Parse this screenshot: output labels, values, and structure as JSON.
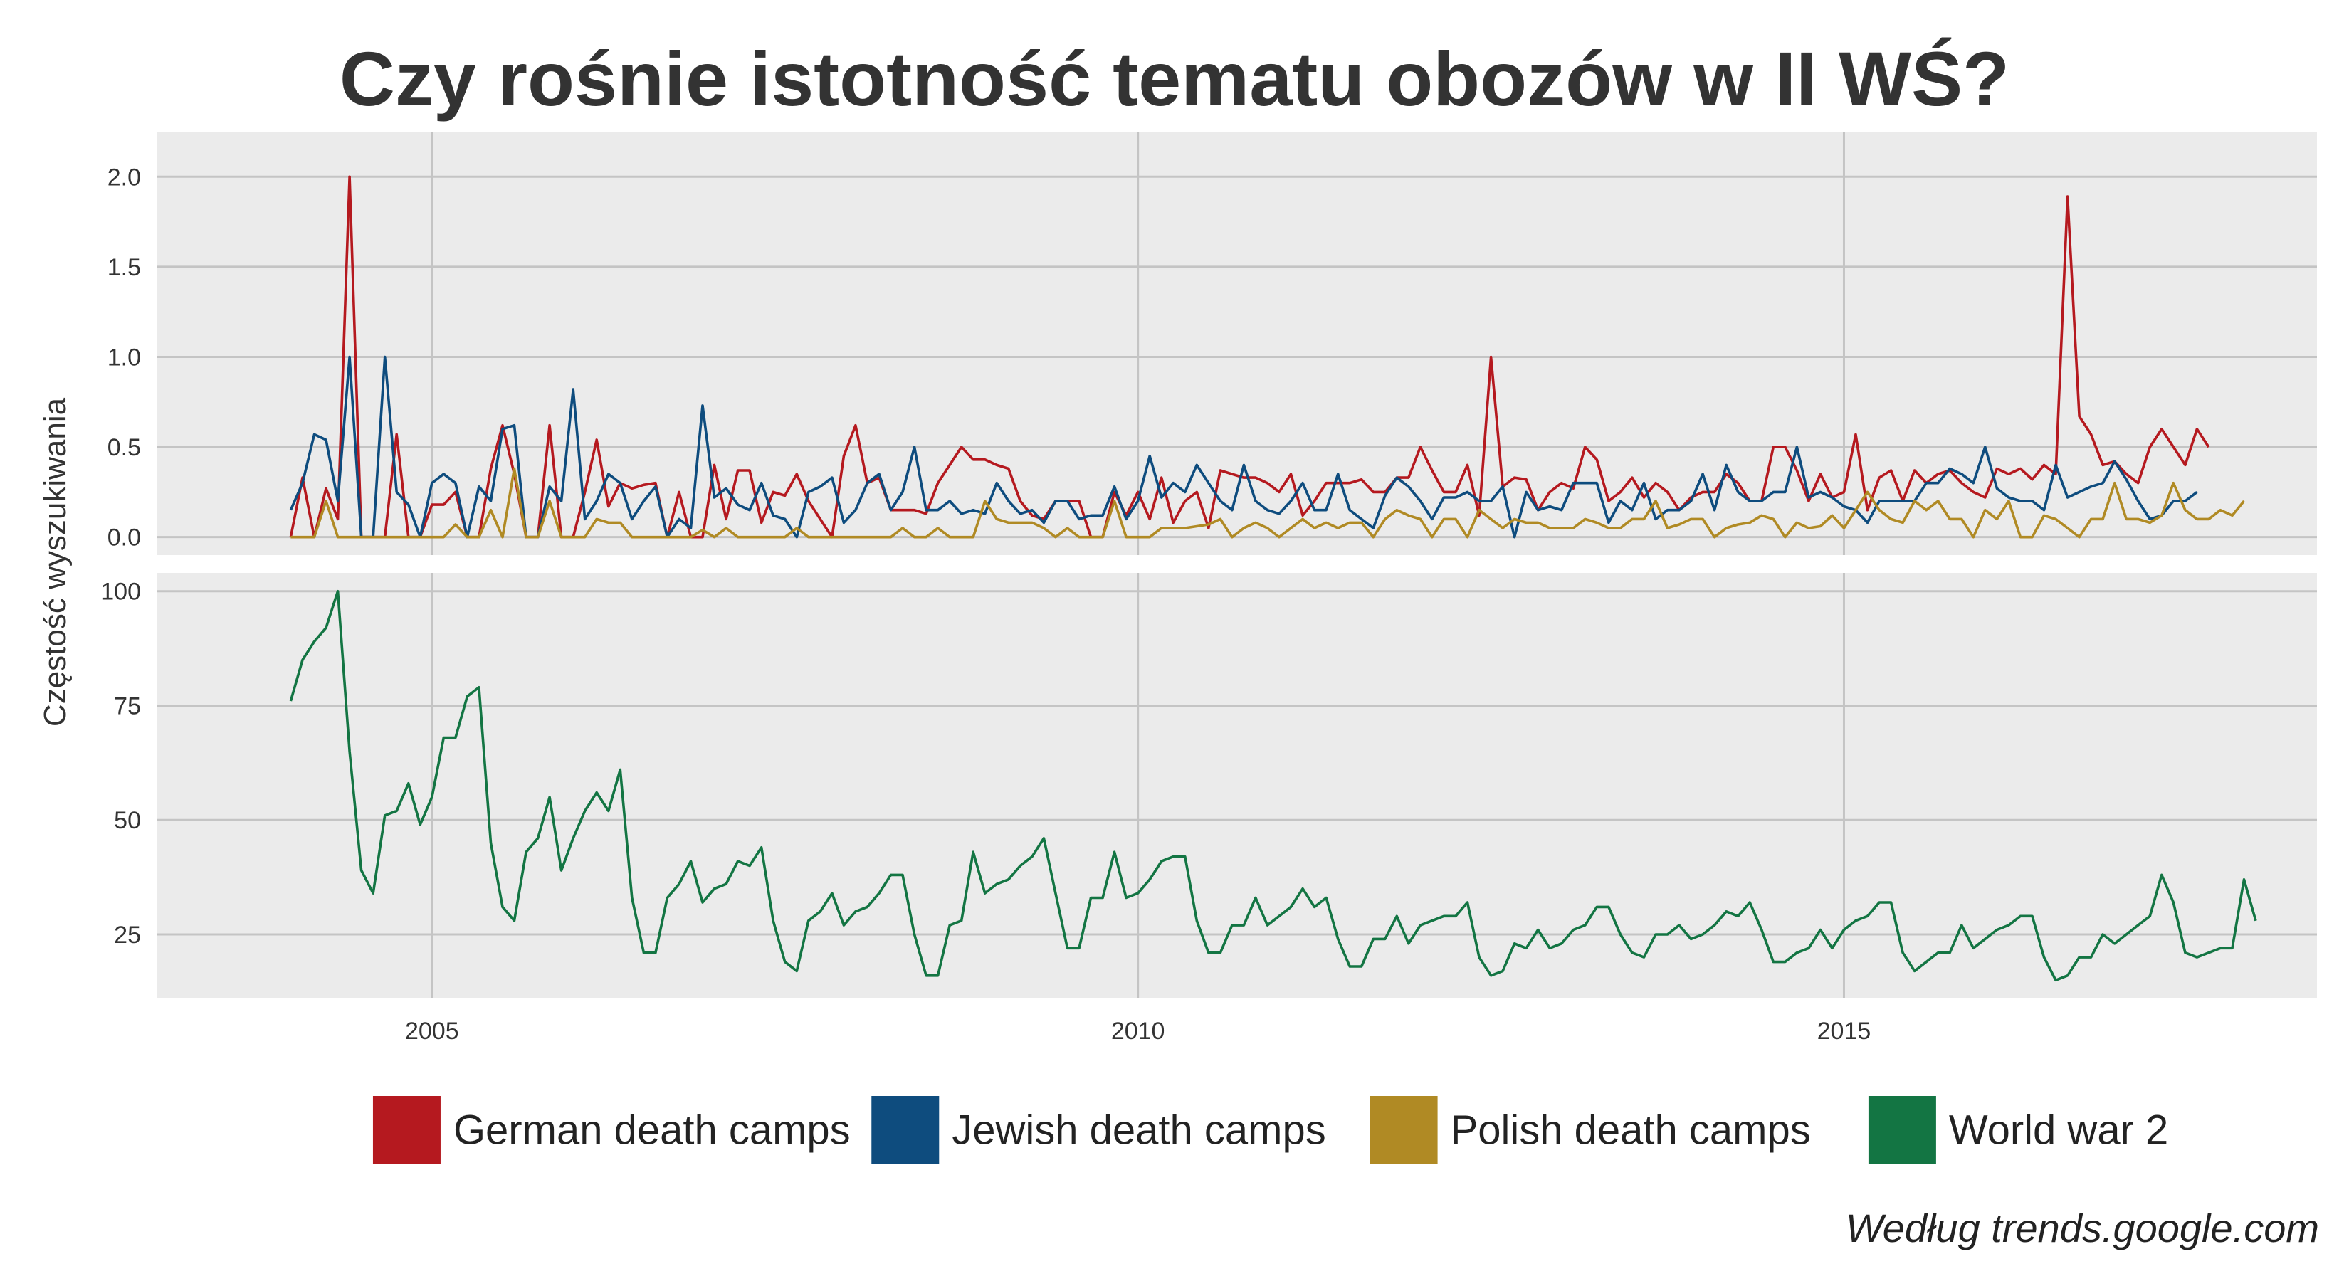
{
  "title": "Czy rośnie istotność tematu obozów w II WŚ?",
  "caption": "Według trends.google.com",
  "colors": {
    "background": "#ffffff",
    "panel": "#ebebeb",
    "grid": "#c4c4c4",
    "text": "#333333"
  },
  "chart_data": [
    {
      "type": "line",
      "panel": "top",
      "ylabel": "Częstość wyszukiwania",
      "ylim": [
        -0.1,
        2.25
      ],
      "yticks": [
        0.0,
        0.5,
        1.0,
        1.5,
        2.0
      ],
      "ytick_labels": [
        "0.0",
        "0.5",
        "1.0",
        "1.5",
        "2.0"
      ],
      "xlim": [
        2003.05,
        2018.35
      ],
      "xticks": [
        2005,
        2010,
        2015
      ],
      "xtick_labels": [
        "2005",
        "2010",
        "2015"
      ],
      "x_start": 2004.0,
      "x_step": 0.0833333,
      "grid": true,
      "series": [
        {
          "name": "German death camps",
          "color": "#b5191f",
          "values": [
            0.0,
            0.33,
            0.0,
            0.27,
            0.1,
            2.0,
            0.0,
            0.0,
            0.0,
            0.57,
            0.0,
            0.0,
            0.18,
            0.18,
            0.25,
            0.0,
            0.0,
            0.38,
            0.62,
            0.35,
            0.0,
            0.0,
            0.62,
            0.0,
            0.0,
            0.25,
            0.54,
            0.17,
            0.3,
            0.27,
            0.29,
            0.3,
            0.0,
            0.25,
            0.0,
            0.0,
            0.4,
            0.1,
            0.37,
            0.37,
            0.08,
            0.25,
            0.23,
            0.35,
            0.2,
            0.1,
            0.0,
            0.45,
            0.62,
            0.3,
            0.33,
            0.15,
            0.15,
            0.15,
            0.13,
            0.3,
            0.4,
            0.5,
            0.43,
            0.43,
            0.4,
            0.38,
            0.2,
            0.12,
            0.1,
            0.2,
            0.2,
            0.2,
            0.0,
            0.0,
            0.25,
            0.12,
            0.25,
            0.1,
            0.33,
            0.08,
            0.2,
            0.25,
            0.05,
            0.37,
            0.35,
            0.33,
            0.33,
            0.3,
            0.25,
            0.35,
            0.12,
            0.2,
            0.3,
            0.3,
            0.3,
            0.32,
            0.25,
            0.25,
            0.33,
            0.33,
            0.5,
            0.37,
            0.25,
            0.25,
            0.4,
            0.12,
            1.0,
            0.28,
            0.33,
            0.32,
            0.15,
            0.25,
            0.3,
            0.27,
            0.5,
            0.43,
            0.2,
            0.25,
            0.33,
            0.22,
            0.3,
            0.25,
            0.15,
            0.22,
            0.25,
            0.25,
            0.35,
            0.3,
            0.2,
            0.2,
            0.5,
            0.5,
            0.37,
            0.2,
            0.35,
            0.22,
            0.25,
            0.57,
            0.15,
            0.33,
            0.37,
            0.2,
            0.37,
            0.3,
            0.35,
            0.37,
            0.3,
            0.25,
            0.22,
            0.38,
            0.35,
            0.38,
            0.32,
            0.4,
            0.35,
            1.89,
            0.67,
            0.57,
            0.4,
            0.42,
            0.35,
            0.3,
            0.5,
            0.6,
            0.5,
            0.4,
            0.6,
            0.5
          ]
        },
        {
          "name": "Jewish death camps",
          "color": "#0e4c7e",
          "values": [
            0.15,
            0.3,
            0.57,
            0.54,
            0.2,
            1.0,
            0.0,
            0.0,
            1.0,
            0.25,
            0.18,
            0.0,
            0.3,
            0.35,
            0.3,
            0.0,
            0.28,
            0.2,
            0.6,
            0.62,
            0.0,
            0.0,
            0.28,
            0.2,
            0.82,
            0.1,
            0.2,
            0.35,
            0.3,
            0.1,
            0.2,
            0.28,
            0.0,
            0.1,
            0.05,
            0.73,
            0.22,
            0.27,
            0.18,
            0.15,
            0.3,
            0.12,
            0.1,
            0.0,
            0.25,
            0.28,
            0.33,
            0.08,
            0.15,
            0.3,
            0.35,
            0.15,
            0.25,
            0.5,
            0.15,
            0.15,
            0.2,
            0.13,
            0.15,
            0.13,
            0.3,
            0.2,
            0.13,
            0.15,
            0.08,
            0.2,
            0.2,
            0.1,
            0.12,
            0.12,
            0.28,
            0.1,
            0.2,
            0.45,
            0.22,
            0.3,
            0.25,
            0.4,
            0.3,
            0.2,
            0.15,
            0.4,
            0.2,
            0.15,
            0.13,
            0.2,
            0.3,
            0.15,
            0.15,
            0.35,
            0.15,
            0.1,
            0.05,
            0.23,
            0.33,
            0.28,
            0.2,
            0.1,
            0.22,
            0.22,
            0.25,
            0.2,
            0.2,
            0.28,
            0.0,
            0.25,
            0.15,
            0.17,
            0.15,
            0.3,
            0.3,
            0.3,
            0.08,
            0.2,
            0.15,
            0.3,
            0.1,
            0.15,
            0.15,
            0.2,
            0.35,
            0.15,
            0.4,
            0.25,
            0.2,
            0.2,
            0.25,
            0.25,
            0.5,
            0.22,
            0.25,
            0.22,
            0.17,
            0.15,
            0.08,
            0.2,
            0.2,
            0.2,
            0.2,
            0.3,
            0.3,
            0.38,
            0.35,
            0.3,
            0.5,
            0.27,
            0.22,
            0.2,
            0.2,
            0.15,
            0.4,
            0.22,
            0.25,
            0.28,
            0.3,
            0.42,
            0.32,
            0.2,
            0.1,
            0.12,
            0.2,
            0.2,
            0.25
          ]
        },
        {
          "name": "Polish death camps",
          "color": "#b08a24",
          "values": [
            0.0,
            0.0,
            0.0,
            0.2,
            0.0,
            0.0,
            0.0,
            0.0,
            0.0,
            0.0,
            0.0,
            0.0,
            0.0,
            0.0,
            0.07,
            0.0,
            0.0,
            0.15,
            0.0,
            0.38,
            0.0,
            0.0,
            0.2,
            0.0,
            0.0,
            0.0,
            0.1,
            0.08,
            0.08,
            0.0,
            0.0,
            0.0,
            0.0,
            0.0,
            0.0,
            0.04,
            0.0,
            0.05,
            0.0,
            0.0,
            0.0,
            0.0,
            0.0,
            0.05,
            0.0,
            0.0,
            0.0,
            0.0,
            0.0,
            0.0,
            0.0,
            0.0,
            0.05,
            0.0,
            0.0,
            0.05,
            0.0,
            0.0,
            0.0,
            0.2,
            0.1,
            0.08,
            0.08,
            0.08,
            0.05,
            0.0,
            0.05,
            0.0,
            0.0,
            0.0,
            0.2,
            0.0,
            0.0,
            0.0,
            0.05,
            0.05,
            0.05,
            0.06,
            0.07,
            0.1,
            0.0,
            0.05,
            0.08,
            0.05,
            0.0,
            0.05,
            0.1,
            0.05,
            0.08,
            0.05,
            0.08,
            0.08,
            0.0,
            0.1,
            0.15,
            0.12,
            0.1,
            0.0,
            0.1,
            0.1,
            0.0,
            0.15,
            0.1,
            0.05,
            0.1,
            0.08,
            0.08,
            0.05,
            0.05,
            0.05,
            0.1,
            0.08,
            0.05,
            0.05,
            0.1,
            0.1,
            0.2,
            0.05,
            0.07,
            0.1,
            0.1,
            0.0,
            0.05,
            0.07,
            0.08,
            0.12,
            0.1,
            0.0,
            0.08,
            0.05,
            0.06,
            0.12,
            0.05,
            0.15,
            0.25,
            0.15,
            0.1,
            0.08,
            0.2,
            0.15,
            0.2,
            0.1,
            0.1,
            0.0,
            0.15,
            0.1,
            0.2,
            0.0,
            0.0,
            0.12,
            0.1,
            0.05,
            0.0,
            0.1,
            0.1,
            0.3,
            0.1,
            0.1,
            0.08,
            0.12,
            0.3,
            0.15,
            0.1,
            0.1,
            0.15,
            0.12,
            0.2
          ]
        }
      ]
    },
    {
      "type": "line",
      "panel": "bottom",
      "ylabel": "Częstość wyszukiwania",
      "ylim": [
        11,
        104
      ],
      "yticks": [
        25,
        50,
        75,
        100
      ],
      "ytick_labels": [
        "25",
        "50",
        "75",
        "100"
      ],
      "xlim": [
        2003.05,
        2018.35
      ],
      "xticks": [
        2005,
        2010,
        2015
      ],
      "xtick_labels": [
        "2005",
        "2010",
        "2015"
      ],
      "x_start": 2004.0,
      "x_step": 0.0833333,
      "grid": true,
      "series": [
        {
          "name": "World war 2",
          "color": "#137543",
          "values": [
            76,
            85,
            89,
            92,
            100,
            65,
            39,
            34,
            51,
            52,
            58,
            49,
            55,
            68,
            68,
            77,
            79,
            45,
            31,
            28,
            43,
            46,
            55,
            39,
            46,
            52,
            56,
            52,
            61,
            33,
            21,
            21,
            33,
            36,
            41,
            32,
            35,
            36,
            41,
            40,
            44,
            28,
            19,
            17,
            28,
            30,
            34,
            27,
            30,
            31,
            34,
            38,
            38,
            25,
            16,
            16,
            27,
            28,
            43,
            34,
            36,
            37,
            40,
            42,
            46,
            34,
            22,
            22,
            33,
            33,
            43,
            33,
            34,
            37,
            41,
            42,
            42,
            28,
            21,
            21,
            27,
            27,
            33,
            27,
            29,
            31,
            35,
            31,
            33,
            24,
            18,
            18,
            24,
            24,
            29,
            23,
            27,
            28,
            29,
            29,
            32,
            20,
            16,
            17,
            23,
            22,
            26,
            22,
            23,
            26,
            27,
            31,
            31,
            25,
            21,
            20,
            25,
            25,
            27,
            24,
            25,
            27,
            30,
            29,
            32,
            26,
            19,
            19,
            21,
            22,
            26,
            22,
            26,
            28,
            29,
            32,
            32,
            21,
            17,
            19,
            21,
            21,
            27,
            22,
            24,
            26,
            27,
            29,
            29,
            20,
            15,
            16,
            20,
            20,
            25,
            23,
            25,
            27,
            29,
            38,
            32,
            21,
            20,
            21,
            22,
            22,
            37,
            28
          ]
        }
      ]
    }
  ]
}
